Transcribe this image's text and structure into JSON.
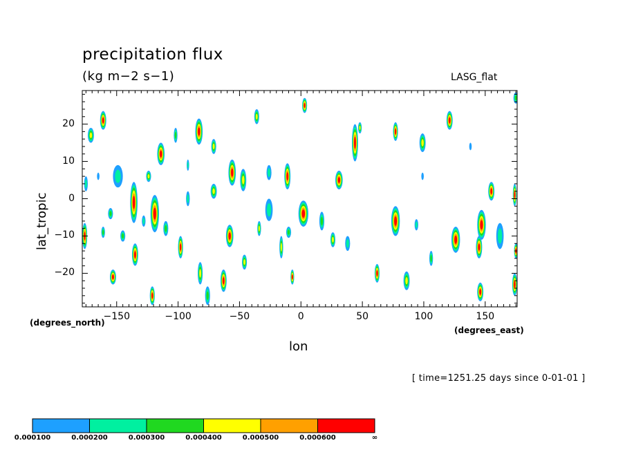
{
  "chart_data": {
    "type": "heatmap",
    "title": "precipitation flux",
    "units": "(kg m−2 s−1)",
    "model": "LASG_flat",
    "xlabel": "lon",
    "ylabel": "lat_tropic",
    "x_units": "(degrees_north)",
    "x_units_right": "(degrees_east)",
    "time_label": "[ time=1251.25 days since 0-01-01 ]",
    "xlim": [
      -178,
      176
    ],
    "ylim": [
      -29,
      29
    ],
    "x_ticks": [
      {
        "value": -150,
        "label": "−150"
      },
      {
        "value": -100,
        "label": "−100"
      },
      {
        "value": -50,
        "label": "−50"
      },
      {
        "value": 0,
        "label": "0"
      },
      {
        "value": 50,
        "label": "50"
      },
      {
        "value": 100,
        "label": "100"
      },
      {
        "value": 150,
        "label": "150"
      }
    ],
    "y_ticks": [
      {
        "value": 20,
        "label": "20"
      },
      {
        "value": 10,
        "label": "10"
      },
      {
        "value": 0,
        "label": "0"
      },
      {
        "value": -10,
        "label": "−10"
      },
      {
        "value": -20,
        "label": "−20"
      }
    ],
    "colorbar": {
      "colors": [
        "#1ea0ff",
        "#00f0a0",
        "#20d820",
        "#ffff00",
        "#ffa000",
        "#ff0000"
      ],
      "labels": [
        "0.000100",
        "0.000200",
        "0.000300",
        "0.000400",
        "0.000500",
        "0.000600",
        "∞"
      ]
    },
    "cells": [
      {
        "lon": -175,
        "lat": 4,
        "level": 2,
        "w": 3,
        "h": 4
      },
      {
        "lon": -176,
        "lat": -10,
        "level": 6,
        "w": 4,
        "h": 7
      },
      {
        "lon": -171,
        "lat": 17,
        "level": 4,
        "w": 5,
        "h": 4
      },
      {
        "lon": -161,
        "lat": 21,
        "level": 6,
        "w": 5,
        "h": 5
      },
      {
        "lon": -161,
        "lat": -9,
        "level": 3,
        "w": 3,
        "h": 3
      },
      {
        "lon": -155,
        "lat": -4,
        "level": 3,
        "w": 4,
        "h": 3
      },
      {
        "lon": -153,
        "lat": -21,
        "level": 6,
        "w": 5,
        "h": 4
      },
      {
        "lon": -149,
        "lat": 6,
        "level": 2,
        "w": 8,
        "h": 6
      },
      {
        "lon": -145,
        "lat": -10,
        "level": 3,
        "w": 4,
        "h": 3
      },
      {
        "lon": -136,
        "lat": -1,
        "level": 6,
        "w": 6,
        "h": 11
      },
      {
        "lon": -135,
        "lat": -15,
        "level": 6,
        "w": 5,
        "h": 6
      },
      {
        "lon": -128,
        "lat": -6,
        "level": 2,
        "w": 3,
        "h": 3
      },
      {
        "lon": -124,
        "lat": 6,
        "level": 4,
        "w": 4,
        "h": 3
      },
      {
        "lon": -119,
        "lat": -4,
        "level": 6,
        "w": 7,
        "h": 10
      },
      {
        "lon": -114,
        "lat": 12,
        "level": 6,
        "w": 6,
        "h": 6
      },
      {
        "lon": -121,
        "lat": -26,
        "level": 6,
        "w": 4,
        "h": 5
      },
      {
        "lon": -110,
        "lat": -8,
        "level": 3,
        "w": 4,
        "h": 4
      },
      {
        "lon": -102,
        "lat": 17,
        "level": 3,
        "w": 3,
        "h": 4
      },
      {
        "lon": -98,
        "lat": -13,
        "level": 6,
        "w": 4,
        "h": 6
      },
      {
        "lon": -92,
        "lat": 9,
        "level": 2,
        "w": 2,
        "h": 3
      },
      {
        "lon": -92,
        "lat": 0,
        "level": 2,
        "w": 3,
        "h": 4
      },
      {
        "lon": -83,
        "lat": 18,
        "level": 6,
        "w": 6,
        "h": 7
      },
      {
        "lon": -82,
        "lat": -20,
        "level": 4,
        "w": 4,
        "h": 6
      },
      {
        "lon": -76,
        "lat": -26,
        "level": 3,
        "w": 4,
        "h": 5
      },
      {
        "lon": -71,
        "lat": 14,
        "level": 4,
        "w": 4,
        "h": 4
      },
      {
        "lon": -71,
        "lat": 2,
        "level": 4,
        "w": 5,
        "h": 4
      },
      {
        "lon": -63,
        "lat": -22,
        "level": 6,
        "w": 5,
        "h": 6
      },
      {
        "lon": -56,
        "lat": 7,
        "level": 6,
        "w": 6,
        "h": 7
      },
      {
        "lon": -58,
        "lat": -10,
        "level": 6,
        "w": 6,
        "h": 6
      },
      {
        "lon": -47,
        "lat": 5,
        "level": 4,
        "w": 5,
        "h": 6
      },
      {
        "lon": -46,
        "lat": -17,
        "level": 4,
        "w": 4,
        "h": 4
      },
      {
        "lon": -36,
        "lat": 22,
        "level": 4,
        "w": 4,
        "h": 4
      },
      {
        "lon": -34,
        "lat": -8,
        "level": 4,
        "w": 3,
        "h": 4
      },
      {
        "lon": -26,
        "lat": -3,
        "level": 2,
        "w": 6,
        "h": 6
      },
      {
        "lon": -26,
        "lat": 7,
        "level": 2,
        "w": 4,
        "h": 4
      },
      {
        "lon": -16,
        "lat": -13,
        "level": 4,
        "w": 3,
        "h": 6
      },
      {
        "lon": -11,
        "lat": 6,
        "level": 6,
        "w": 5,
        "h": 7
      },
      {
        "lon": -10,
        "lat": -9,
        "level": 3,
        "w": 4,
        "h": 3
      },
      {
        "lon": -7,
        "lat": -21,
        "level": 6,
        "w": 3,
        "h": 4
      },
      {
        "lon": 2,
        "lat": -4,
        "level": 6,
        "w": 8,
        "h": 7
      },
      {
        "lon": 3,
        "lat": 25,
        "level": 6,
        "w": 4,
        "h": 4
      },
      {
        "lon": 17,
        "lat": -6,
        "level": 3,
        "w": 4,
        "h": 5
      },
      {
        "lon": 26,
        "lat": -11,
        "level": 4,
        "w": 4,
        "h": 4
      },
      {
        "lon": 31,
        "lat": 5,
        "level": 6,
        "w": 6,
        "h": 5
      },
      {
        "lon": 38,
        "lat": -12,
        "level": 2,
        "w": 4,
        "h": 4
      },
      {
        "lon": 44,
        "lat": 15,
        "level": 6,
        "w": 5,
        "h": 10
      },
      {
        "lon": 48,
        "lat": 19,
        "level": 4,
        "w": 3,
        "h": 3
      },
      {
        "lon": 62,
        "lat": -20,
        "level": 6,
        "w": 4,
        "h": 5
      },
      {
        "lon": 77,
        "lat": -6,
        "level": 6,
        "w": 7,
        "h": 8
      },
      {
        "lon": 77,
        "lat": 18,
        "level": 6,
        "w": 4,
        "h": 5
      },
      {
        "lon": 86,
        "lat": -22,
        "level": 4,
        "w": 5,
        "h": 5
      },
      {
        "lon": 94,
        "lat": -7,
        "level": 2,
        "w": 3,
        "h": 3
      },
      {
        "lon": 99,
        "lat": 15,
        "level": 4,
        "w": 5,
        "h": 5
      },
      {
        "lon": 121,
        "lat": 21,
        "level": 6,
        "w": 5,
        "h": 5
      },
      {
        "lon": 126,
        "lat": -11,
        "level": 6,
        "w": 7,
        "h": 7
      },
      {
        "lon": 145,
        "lat": -13,
        "level": 6,
        "w": 5,
        "h": 6
      },
      {
        "lon": 147,
        "lat": -7,
        "level": 6,
        "w": 7,
        "h": 8
      },
      {
        "lon": 146,
        "lat": -25,
        "level": 6,
        "w": 5,
        "h": 5
      },
      {
        "lon": 155,
        "lat": 2,
        "level": 6,
        "w": 5,
        "h": 5
      },
      {
        "lon": 162,
        "lat": -10,
        "level": 2,
        "w": 6,
        "h": 7
      },
      {
        "lon": 174,
        "lat": 1,
        "level": 6,
        "w": 3,
        "h": 6
      },
      {
        "lon": 175,
        "lat": -14,
        "level": 6,
        "w": 3,
        "h": 4
      },
      {
        "lon": 174,
        "lat": -23,
        "level": 6,
        "w": 4,
        "h": 6
      },
      {
        "lon": 175,
        "lat": 27,
        "level": 3,
        "w": 4,
        "h": 3
      },
      {
        "lon": 106,
        "lat": -16,
        "level": 3,
        "w": 3,
        "h": 4
      },
      {
        "lon": 138,
        "lat": 14,
        "level": 1,
        "w": 2,
        "h": 2
      },
      {
        "lon": 99,
        "lat": 6,
        "level": 1,
        "w": 2,
        "h": 2
      },
      {
        "lon": -165,
        "lat": 6,
        "level": 1,
        "w": 2,
        "h": 2
      }
    ]
  }
}
